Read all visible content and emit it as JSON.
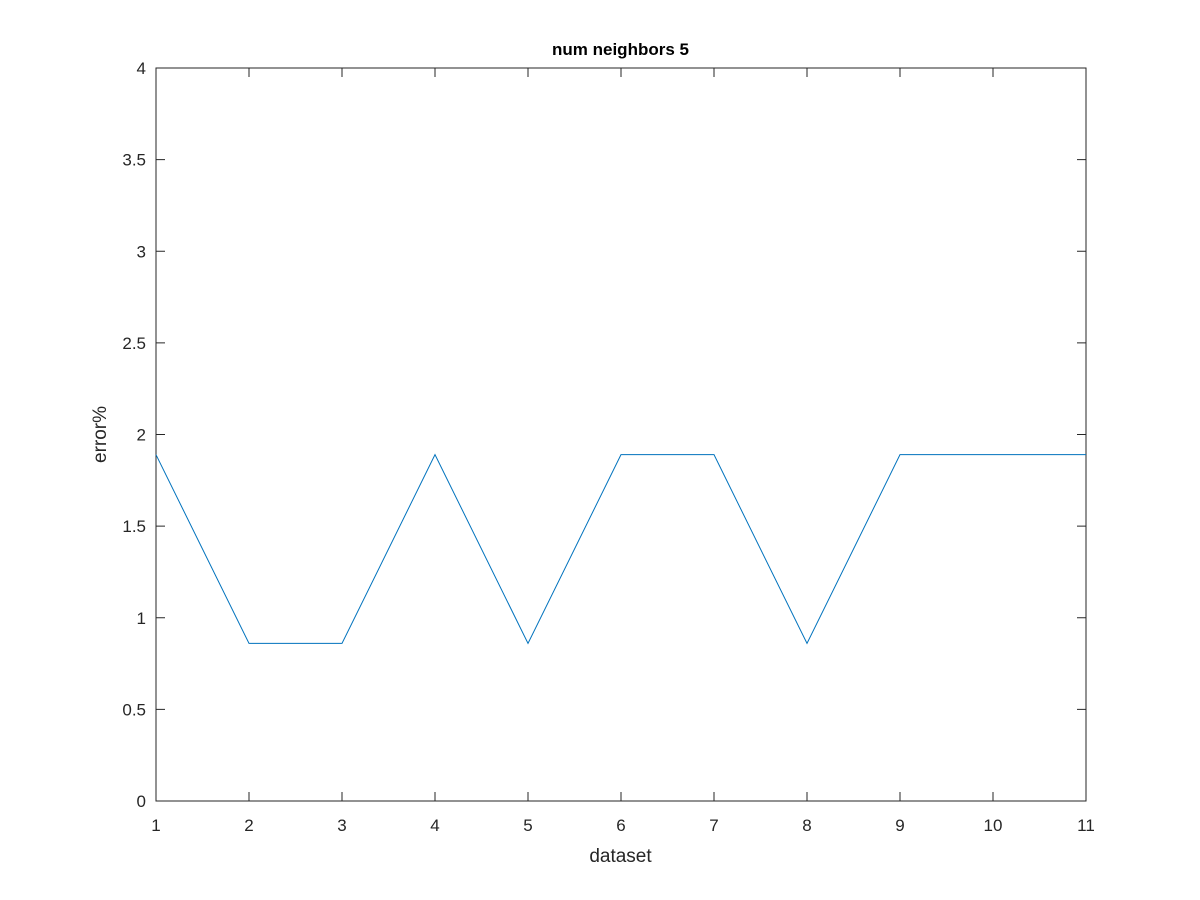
{
  "chart_data": {
    "type": "line",
    "title": "num neighbors 5",
    "xlabel": "dataset",
    "ylabel": "error%",
    "xlim": [
      1,
      11
    ],
    "ylim": [
      0,
      4
    ],
    "x_ticks": [
      1,
      2,
      3,
      4,
      5,
      6,
      7,
      8,
      9,
      10,
      11
    ],
    "y_ticks": [
      0,
      0.5,
      1,
      1.5,
      2,
      2.5,
      3,
      3.5,
      4
    ],
    "x_tick_labels": [
      "1",
      "2",
      "3",
      "4",
      "5",
      "6",
      "7",
      "8",
      "9",
      "10",
      "11"
    ],
    "y_tick_labels": [
      "0",
      "0.5",
      "1",
      "1.5",
      "2",
      "2.5",
      "3",
      "3.5",
      "4"
    ],
    "grid": false,
    "box": true,
    "series": [
      {
        "color": "#0072BD",
        "x": [
          1,
          2,
          3,
          4,
          5,
          6,
          7,
          8,
          9,
          10,
          11
        ],
        "y": [
          1.89,
          0.86,
          0.86,
          1.89,
          0.86,
          1.89,
          1.89,
          0.86,
          1.89,
          1.89,
          1.89
        ]
      }
    ]
  }
}
